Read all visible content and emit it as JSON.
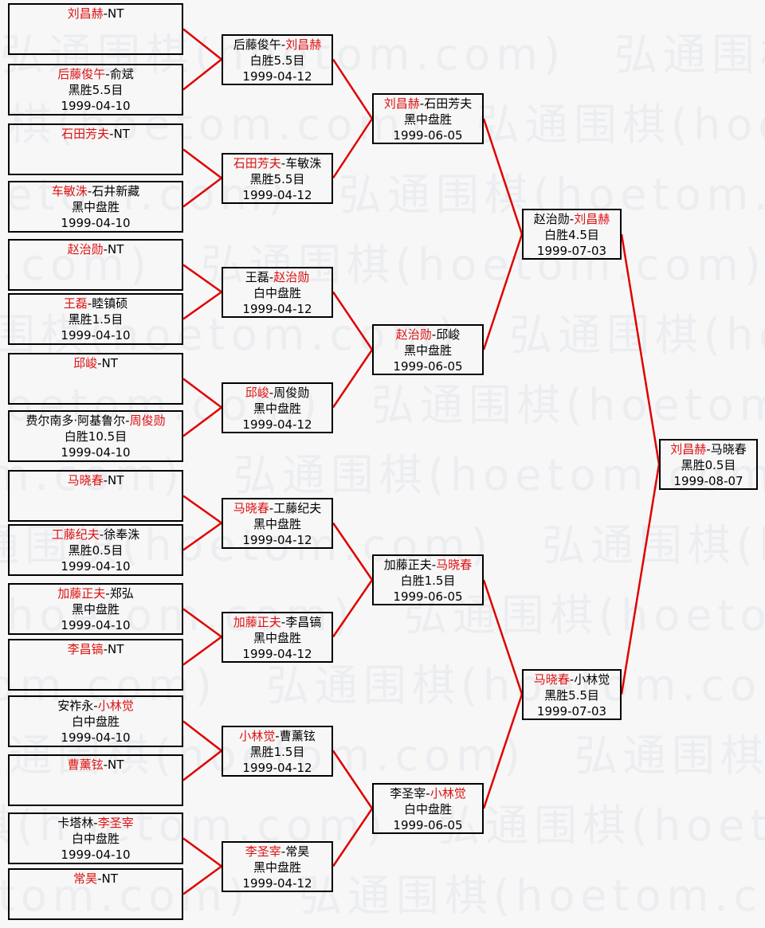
{
  "page": {
    "background": "#f7f7f7"
  },
  "watermark": {
    "text": "弘通围棋(hoetom.com)",
    "color": "#ebedf0"
  },
  "colors": {
    "winner_red": "#dd1111",
    "connector_red": "#e00000",
    "border_black": "#000000",
    "text_black": "#000000"
  },
  "bracket": {
    "separator": "-",
    "rounds": [
      {
        "matches": [
          {
            "p1": "刘昌赫",
            "p1_red": true,
            "p2": "NT",
            "p2_red": false,
            "result": "",
            "date": ""
          },
          {
            "p1": "后藤俊午",
            "p1_red": true,
            "p2": "俞斌",
            "p2_red": false,
            "result": "黑胜5.5目",
            "date": "1999-04-10"
          },
          {
            "p1": "石田芳夫",
            "p1_red": true,
            "p2": "NT",
            "p2_red": false,
            "result": "",
            "date": ""
          },
          {
            "p1": "车敏洙",
            "p1_red": true,
            "p2": "石井新藏",
            "p2_red": false,
            "result": "黑中盘胜",
            "date": "1999-04-10"
          },
          {
            "p1": "赵治勋",
            "p1_red": true,
            "p2": "NT",
            "p2_red": false,
            "result": "",
            "date": ""
          },
          {
            "p1": "王磊",
            "p1_red": true,
            "p2": "睦镇硕",
            "p2_red": false,
            "result": "黑胜1.5目",
            "date": "1999-04-10"
          },
          {
            "p1": "邱峻",
            "p1_red": true,
            "p2": "NT",
            "p2_red": false,
            "result": "",
            "date": ""
          },
          {
            "p1": "费尔南多·阿基鲁尔",
            "p1_red": false,
            "p2": "周俊勋",
            "p2_red": true,
            "result": "白胜10.5目",
            "date": "1999-04-10"
          },
          {
            "p1": "马晓春",
            "p1_red": true,
            "p2": "NT",
            "p2_red": false,
            "result": "",
            "date": ""
          },
          {
            "p1": "工藤纪夫",
            "p1_red": true,
            "p2": "徐奉洙",
            "p2_red": false,
            "result": "黑胜0.5目",
            "date": "1999-04-10"
          },
          {
            "p1": "加藤正夫",
            "p1_red": true,
            "p2": "郑弘",
            "p2_red": false,
            "result": "黑中盘胜",
            "date": "1999-04-10"
          },
          {
            "p1": "李昌镐",
            "p1_red": true,
            "p2": "NT",
            "p2_red": false,
            "result": "",
            "date": ""
          },
          {
            "p1": "安祚永",
            "p1_red": false,
            "p2": "小林觉",
            "p2_red": true,
            "result": "白中盘胜",
            "date": "1999-04-10"
          },
          {
            "p1": "曹薰铉",
            "p1_red": true,
            "p2": "NT",
            "p2_red": false,
            "result": "",
            "date": ""
          },
          {
            "p1": "卡塔林",
            "p1_red": false,
            "p2": "李圣宰",
            "p2_red": true,
            "result": "白中盘胜",
            "date": "1999-04-10"
          },
          {
            "p1": "常昊",
            "p1_red": true,
            "p2": "NT",
            "p2_red": false,
            "result": "",
            "date": ""
          }
        ]
      },
      {
        "matches": [
          {
            "p1": "后藤俊午",
            "p1_red": false,
            "p2": "刘昌赫",
            "p2_red": true,
            "result": "白胜5.5目",
            "date": "1999-04-12"
          },
          {
            "p1": "石田芳夫",
            "p1_red": true,
            "p2": "车敏洙",
            "p2_red": false,
            "result": "黑胜5.5目",
            "date": "1999-04-12"
          },
          {
            "p1": "王磊",
            "p1_red": false,
            "p2": "赵治勋",
            "p2_red": true,
            "result": "白中盘胜",
            "date": "1999-04-12"
          },
          {
            "p1": "邱峻",
            "p1_red": true,
            "p2": "周俊勋",
            "p2_red": false,
            "result": "黑中盘胜",
            "date": "1999-04-12"
          },
          {
            "p1": "马晓春",
            "p1_red": true,
            "p2": "工藤纪夫",
            "p2_red": false,
            "result": "黑中盘胜",
            "date": "1999-04-12"
          },
          {
            "p1": "加藤正夫",
            "p1_red": true,
            "p2": "李昌镐",
            "p2_red": false,
            "result": "黑中盘胜",
            "date": "1999-04-12"
          },
          {
            "p1": "小林觉",
            "p1_red": true,
            "p2": "曹薰铉",
            "p2_red": false,
            "result": "黑胜1.5目",
            "date": "1999-04-12"
          },
          {
            "p1": "李圣宰",
            "p1_red": true,
            "p2": "常昊",
            "p2_red": false,
            "result": "黑中盘胜",
            "date": "1999-04-12"
          }
        ]
      },
      {
        "matches": [
          {
            "p1": "刘昌赫",
            "p1_red": true,
            "p2": "石田芳夫",
            "p2_red": false,
            "result": "黑中盘胜",
            "date": "1999-06-05"
          },
          {
            "p1": "赵治勋",
            "p1_red": true,
            "p2": "邱峻",
            "p2_red": false,
            "result": "黑中盘胜",
            "date": "1999-06-05"
          },
          {
            "p1": "加藤正夫",
            "p1_red": false,
            "p2": "马晓春",
            "p2_red": true,
            "result": "白胜1.5目",
            "date": "1999-06-05"
          },
          {
            "p1": "李圣宰",
            "p1_red": false,
            "p2": "小林觉",
            "p2_red": true,
            "result": "白中盘胜",
            "date": "1999-06-05"
          }
        ]
      },
      {
        "matches": [
          {
            "p1": "赵治勋",
            "p1_red": false,
            "p2": "刘昌赫",
            "p2_red": true,
            "result": "白胜4.5目",
            "date": "1999-07-03"
          },
          {
            "p1": "马晓春",
            "p1_red": true,
            "p2": "小林觉",
            "p2_red": false,
            "result": "黑胜5.5目",
            "date": "1999-07-03"
          }
        ]
      },
      {
        "matches": [
          {
            "p1": "刘昌赫",
            "p1_red": true,
            "p2": "马晓春",
            "p2_red": false,
            "result": "黑胜0.5目",
            "date": "1999-08-07"
          }
        ]
      }
    ]
  }
}
